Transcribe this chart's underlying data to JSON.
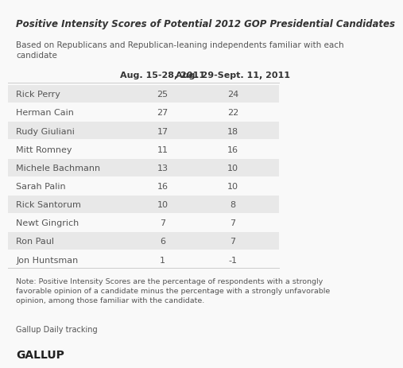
{
  "title": "Positive Intensity Scores of Potential 2012 GOP Presidential Candidates",
  "subtitle": "Based on Republicans and Republican-leaning independents familiar with each\ncandidate",
  "col1_header": "Aug. 15-28, 2011",
  "col2_header": "Aug. 29-Sept. 11, 2011",
  "candidates": [
    "Rick Perry",
    "Herman Cain",
    "Rudy Giuliani",
    "Mitt Romney",
    "Michele Bachmann",
    "Sarah Palin",
    "Rick Santorum",
    "Newt Gingrich",
    "Ron Paul",
    "Jon Huntsman"
  ],
  "col1_values": [
    25,
    27,
    17,
    11,
    13,
    16,
    10,
    7,
    6,
    1
  ],
  "col2_values": [
    24,
    22,
    18,
    16,
    10,
    10,
    8,
    7,
    7,
    -1
  ],
  "shaded_rows": [
    0,
    2,
    4,
    6,
    8
  ],
  "row_bg_color": "#e8e8e8",
  "note": "Note: Positive Intensity Scores are the percentage of respondents with a strongly\nfavorable opinion of a candidate minus the percentage with a strongly unfavorable\nopinion, among those familiar with the candidate.",
  "source": "Gallup Daily tracking",
  "logo": "GALLUP",
  "figure_bg": "#f9f9f9",
  "title_color": "#333333",
  "header_color": "#333333",
  "data_color": "#555555",
  "note_color": "#555555",
  "line_color": "#cccccc"
}
